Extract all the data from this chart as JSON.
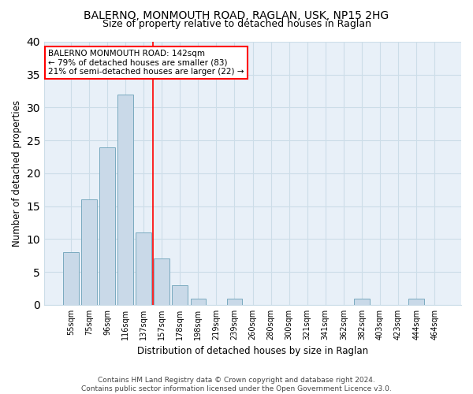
{
  "title1": "BALERNO, MONMOUTH ROAD, RAGLAN, USK, NP15 2HG",
  "title2": "Size of property relative to detached houses in Raglan",
  "xlabel": "Distribution of detached houses by size in Raglan",
  "ylabel": "Number of detached properties",
  "categories": [
    "55sqm",
    "75sqm",
    "96sqm",
    "116sqm",
    "137sqm",
    "157sqm",
    "178sqm",
    "198sqm",
    "219sqm",
    "239sqm",
    "260sqm",
    "280sqm",
    "300sqm",
    "321sqm",
    "341sqm",
    "362sqm",
    "382sqm",
    "403sqm",
    "423sqm",
    "444sqm",
    "464sqm"
  ],
  "values": [
    8,
    16,
    24,
    32,
    11,
    7,
    3,
    1,
    0,
    1,
    0,
    0,
    0,
    0,
    0,
    0,
    1,
    0,
    0,
    1,
    0
  ],
  "bar_color": "#c9d9e8",
  "bar_edge_color": "#7aaabf",
  "grid_color": "#ccdde8",
  "background_color": "#e8f0f8",
  "annotation_line1": "BALERNO MONMOUTH ROAD: 142sqm",
  "annotation_line2": "← 79% of detached houses are smaller (83)",
  "annotation_line3": "21% of semi-detached houses are larger (22) →",
  "redline_x": 4.5,
  "footer1": "Contains HM Land Registry data © Crown copyright and database right 2024.",
  "footer2": "Contains public sector information licensed under the Open Government Licence v3.0.",
  "ylim": [
    0,
    40
  ],
  "yticks": [
    0,
    5,
    10,
    15,
    20,
    25,
    30,
    35,
    40
  ]
}
